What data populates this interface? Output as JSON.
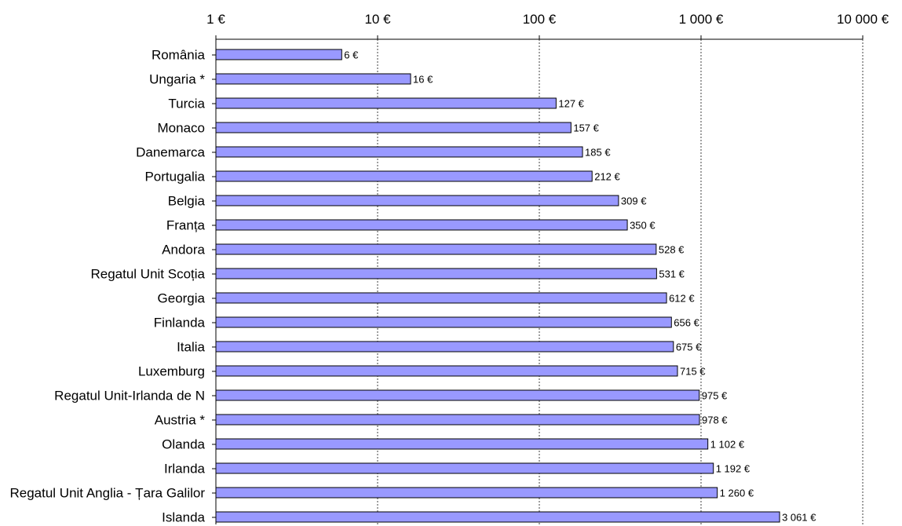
{
  "chart_data": {
    "type": "bar",
    "orientation": "horizontal",
    "x_scale": "log",
    "xlim": [
      1,
      10000
    ],
    "x_ticks": [
      1,
      10,
      100,
      1000,
      10000
    ],
    "x_tick_labels": [
      "1 €",
      "10 €",
      "100 €",
      "1 000 €",
      "10 000 €"
    ],
    "axis_position": "top",
    "grid": true,
    "bar_color": "#9999ff",
    "categories": [
      "România",
      "Ungaria *",
      "Turcia",
      "Monaco",
      "Danemarca",
      "Portugalia",
      "Belgia",
      "Franța",
      "Andora",
      "Regatul Unit  Scoția",
      "Georgia",
      "Finlanda",
      "Italia",
      "Luxemburg",
      "Regatul Unit-Irlanda de N",
      "Austria *",
      "Olanda",
      "Irlanda",
      "Regatul Unit Anglia - Țara Galilor",
      "Islanda"
    ],
    "values": [
      6,
      16,
      127,
      157,
      185,
      212,
      309,
      350,
      528,
      531,
      612,
      656,
      675,
      715,
      975,
      978,
      1102,
      1192,
      1260,
      3061
    ],
    "value_labels": [
      "6 €",
      "16 €",
      "127 €",
      "157 €",
      "185 €",
      "212 €",
      "309 €",
      "350 €",
      "528 €",
      "531 €",
      "612 €",
      "656 €",
      "675 €",
      "715 €",
      "975 €",
      "978 €",
      "1 102 €",
      "1 192 €",
      "1 260 €",
      "3 061 €"
    ],
    "title": "",
    "xlabel": "",
    "ylabel": ""
  }
}
